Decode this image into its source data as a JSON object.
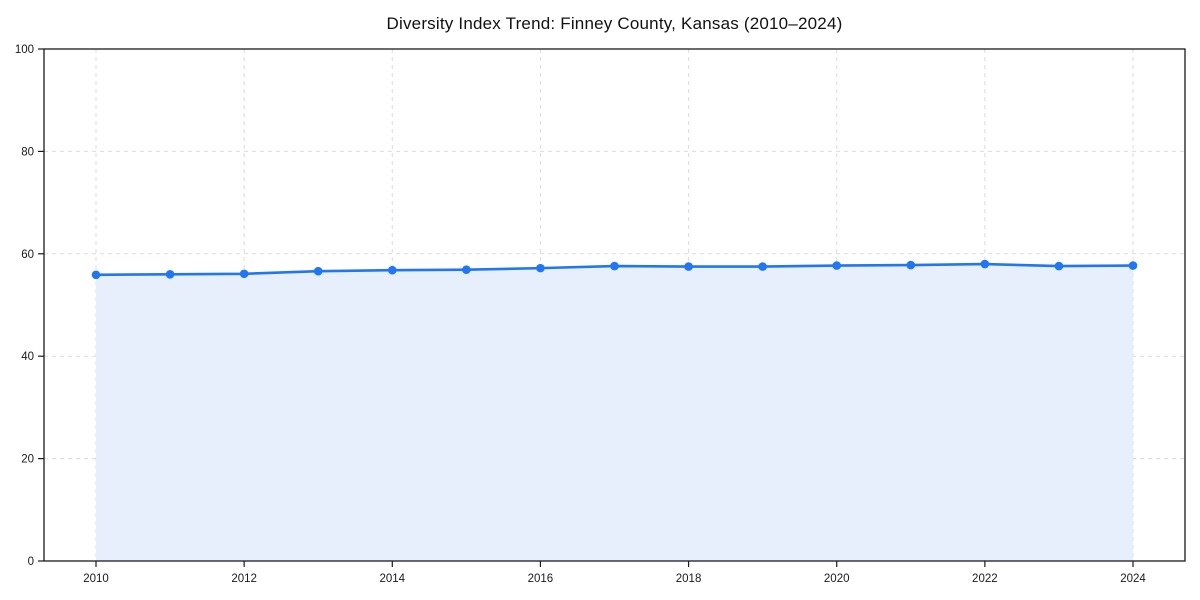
{
  "chart_data": {
    "type": "area",
    "title": "Diversity Index Trend: Finney County, Kansas (2010–2024)",
    "xlabel": "",
    "ylabel": "",
    "x": [
      2010,
      2011,
      2012,
      2013,
      2014,
      2015,
      2016,
      2017,
      2018,
      2019,
      2020,
      2021,
      2022,
      2023,
      2024
    ],
    "series": [
      {
        "name": "Diversity Index",
        "values": [
          55.9,
          56.0,
          56.1,
          56.6,
          56.8,
          56.9,
          57.2,
          57.6,
          57.5,
          57.5,
          57.7,
          57.8,
          58.0,
          57.6,
          57.7
        ]
      }
    ],
    "xlim": [
      2010,
      2024
    ],
    "ylim": [
      0,
      100
    ],
    "x_ticks": [
      2010,
      2012,
      2014,
      2016,
      2018,
      2020,
      2022,
      2024
    ],
    "y_ticks": [
      0,
      20,
      40,
      60,
      80,
      100
    ],
    "grid": true,
    "legend": "none",
    "colors": {
      "line": "#2176f2",
      "marker": "#2176f2",
      "fill": "#e8effc",
      "grid": "#dcdcdc",
      "axis": "#1a1a1a",
      "background": "#ffffff"
    }
  }
}
